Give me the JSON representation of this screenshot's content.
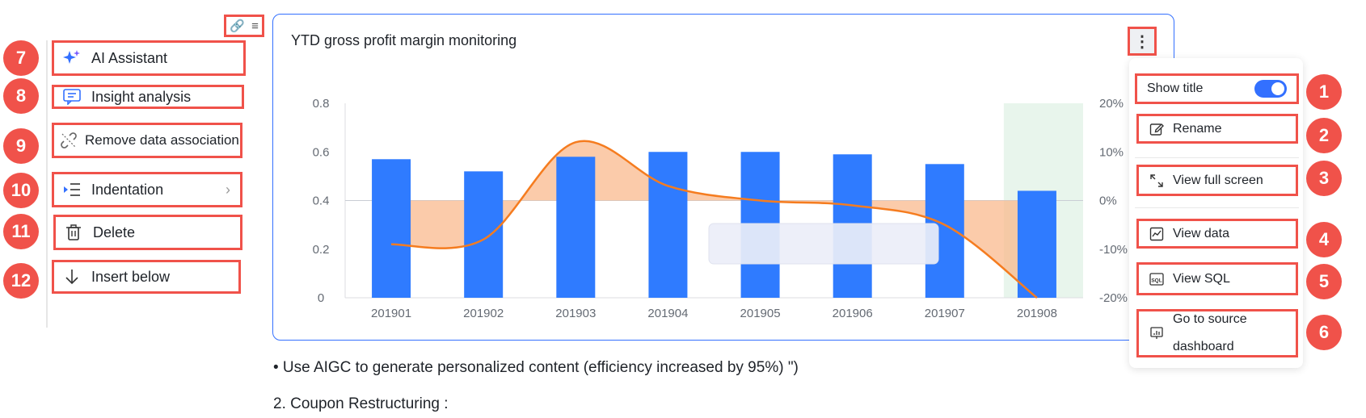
{
  "left_menu": {
    "items": [
      {
        "label": "AI Assistant",
        "icon": "sparkle-icon",
        "badge": "7"
      },
      {
        "label": "Insight analysis",
        "icon": "insight-icon",
        "badge": "8"
      },
      {
        "label": "Remove data association",
        "icon": "unlink-icon",
        "badge": "9"
      },
      {
        "label": "Indentation",
        "icon": "indent-icon",
        "badge": "10"
      },
      {
        "label": "Delete",
        "icon": "trash-icon",
        "badge": "11"
      },
      {
        "label": "Insert below",
        "icon": "arrow-down-icon",
        "badge": "12"
      }
    ]
  },
  "card": {
    "title": "YTD gross profit margin monitoring",
    "more_label": "⋮"
  },
  "dropdown": {
    "items": [
      {
        "label": "Show title",
        "icon": "toggle",
        "badge": "1",
        "toggle_on": true
      },
      {
        "label": "Rename",
        "icon": "edit-icon",
        "badge": "2"
      },
      {
        "label": "View full screen",
        "icon": "fullscreen-icon",
        "badge": "3"
      },
      {
        "label": "View data",
        "icon": "chart-line-icon",
        "badge": "4"
      },
      {
        "label": "View SQL",
        "icon": "sql-icon",
        "badge": "5"
      },
      {
        "label": "Go to source dashboard",
        "icon": "dashboard-icon",
        "badge": "6"
      }
    ]
  },
  "doc": {
    "line1": "• Use AIGC to generate personalized content (efficiency increased by 95%) \")",
    "line2": "2. Coupon Restructuring :"
  },
  "colors": {
    "accent": "#3370ff",
    "bar": "#2f7bff",
    "line": "#f57c1f",
    "area": "#f9b98d",
    "highlight": "#e8f5ec",
    "annotation": "#f0524a"
  },
  "chart_data": {
    "type": "bar",
    "categories": [
      "201901",
      "201902",
      "201903",
      "201904",
      "201905",
      "201906",
      "201907",
      "201908"
    ],
    "series": [
      {
        "type": "bar",
        "axis": "left",
        "values": [
          0.57,
          0.52,
          0.58,
          0.6,
          0.6,
          0.59,
          0.55,
          0.44
        ]
      },
      {
        "type": "line",
        "axis": "right",
        "values": [
          -9,
          -8,
          12,
          3,
          0,
          -1,
          -5,
          -20
        ]
      }
    ],
    "y_left": {
      "ticks": [
        "0",
        "0.2",
        "0.4",
        "0.6",
        "0.8"
      ],
      "range": [
        0,
        0.8
      ]
    },
    "y_right": {
      "ticks": [
        "-20%",
        "-10%",
        "0%",
        "10%",
        "20%"
      ],
      "range": [
        -20,
        20
      ]
    },
    "highlight_category": "201908",
    "grid": false
  }
}
